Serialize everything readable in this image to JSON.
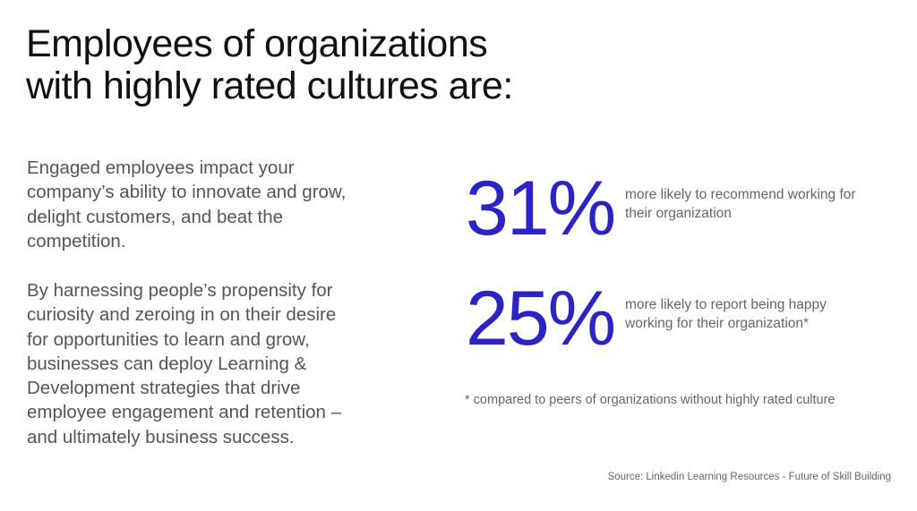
{
  "title": {
    "lines": [
      "Employees of organizations",
      "with highly rated cultures are:"
    ]
  },
  "paragraphs": [
    {
      "lines": [
        "Engaged employees impact your",
        "company’s ability to innovate and grow,",
        "delight customers, and beat the",
        "competition."
      ]
    },
    {
      "lines": [
        "By harnessing people’s propensity for",
        "curiosity and zeroing in on their desire",
        "for opportunities to learn and grow,",
        "businesses can deploy Learning &",
        "Development strategies that drive",
        "employee engagement and retention –",
        "and ultimately business success."
      ]
    }
  ],
  "stats": [
    {
      "value": "31%",
      "desc_lines": [
        "more likely to recommend working for",
        "their organization"
      ]
    },
    {
      "value": "25%",
      "desc_lines": [
        "more likely to report being happy",
        "working for their organization*"
      ]
    }
  ],
  "footnote": "* compared to peers of organizations without highly rated culture",
  "source": "Source: Linkedin Learning Resources - Future of Skill Building",
  "colors": {
    "accent": "#2b23c4",
    "body_text": "#555555",
    "title_text": "#111111"
  }
}
